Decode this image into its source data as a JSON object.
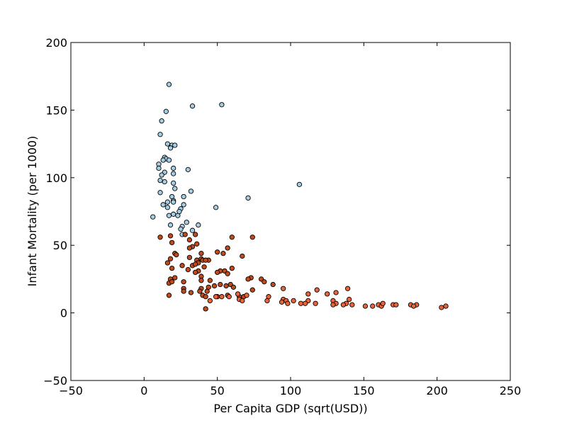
{
  "chart_data": {
    "type": "scatter",
    "title": "",
    "xlabel": "Per Capita GDP (sqrt(USD))",
    "ylabel": "Infant Mortality (per 1000)",
    "xlim": [
      -50,
      250
    ],
    "ylim": [
      -50,
      200
    ],
    "xticks": [
      -50,
      0,
      50,
      100,
      150,
      200,
      250
    ],
    "yticks": [
      -50,
      0,
      50,
      100,
      150,
      200
    ],
    "grid": false,
    "legend": "none",
    "colors": {
      "cluster_high": "#a6cde2",
      "cluster_mid": "#bf4a1b",
      "cluster_low": "#e7653a",
      "edge": "#000000"
    },
    "series": [
      {
        "color_key": "cluster_high",
        "points": [
          [
            17,
            169
          ],
          [
            53,
            154
          ],
          [
            33,
            153
          ],
          [
            15,
            149
          ],
          [
            12,
            142
          ],
          [
            11,
            132
          ],
          [
            16,
            125
          ],
          [
            19,
            124
          ],
          [
            21,
            124
          ],
          [
            18,
            122
          ],
          [
            14,
            115
          ],
          [
            15,
            114
          ],
          [
            13,
            113
          ],
          [
            17,
            113
          ],
          [
            10,
            110
          ],
          [
            10,
            107
          ],
          [
            20,
            107
          ],
          [
            30,
            106
          ],
          [
            14,
            104
          ],
          [
            12,
            102
          ],
          [
            20,
            103
          ],
          [
            11,
            98
          ],
          [
            14,
            97
          ],
          [
            20,
            96
          ],
          [
            106,
            95
          ],
          [
            21,
            92
          ],
          [
            32,
            90
          ],
          [
            11,
            89
          ],
          [
            19,
            86
          ],
          [
            27,
            86
          ],
          [
            71,
            85
          ],
          [
            20,
            83
          ],
          [
            13,
            80
          ],
          [
            20,
            82
          ],
          [
            16,
            82
          ],
          [
            27,
            80
          ],
          [
            16,
            78
          ],
          [
            49,
            78
          ],
          [
            25,
            77
          ],
          [
            20,
            73
          ],
          [
            17,
            72
          ],
          [
            23,
            72
          ],
          [
            24,
            75
          ],
          [
            6,
            71
          ],
          [
            29,
            67
          ],
          [
            18,
            65
          ],
          [
            37,
            65
          ],
          [
            26,
            64
          ],
          [
            25,
            62
          ],
          [
            33,
            61
          ],
          [
            26,
            58
          ]
        ]
      },
      {
        "color_key": "cluster_mid",
        "points": [
          [
            11,
            56
          ],
          [
            18,
            57
          ],
          [
            35,
            58
          ],
          [
            60,
            56
          ],
          [
            74,
            56
          ],
          [
            28,
            58
          ],
          [
            31,
            54
          ],
          [
            19,
            52
          ],
          [
            36,
            51
          ],
          [
            33,
            49
          ],
          [
            57,
            48
          ],
          [
            31,
            48
          ],
          [
            21,
            44
          ],
          [
            50,
            45
          ],
          [
            54,
            44
          ],
          [
            39,
            44
          ],
          [
            22,
            43
          ],
          [
            67,
            42
          ],
          [
            39,
            40
          ],
          [
            18,
            40
          ],
          [
            31,
            41
          ],
          [
            44,
            39
          ],
          [
            40,
            39
          ],
          [
            36,
            39
          ],
          [
            16,
            37
          ],
          [
            42,
            39
          ],
          [
            37,
            37
          ],
          [
            33,
            35
          ],
          [
            26,
            35
          ],
          [
            35,
            36
          ],
          [
            41,
            34
          ],
          [
            19,
            33
          ],
          [
            60,
            33
          ],
          [
            30,
            32
          ],
          [
            55,
            31
          ],
          [
            52,
            31
          ],
          [
            37,
            31
          ],
          [
            57,
            29
          ],
          [
            50,
            30
          ],
          [
            35,
            30
          ],
          [
            39,
            27
          ],
          [
            73,
            26
          ],
          [
            21,
            26
          ],
          [
            18,
            25
          ],
          [
            71,
            25
          ],
          [
            80,
            25
          ],
          [
            39,
            24
          ],
          [
            45,
            24
          ],
          [
            82,
            23
          ],
          [
            27,
            23
          ],
          [
            17,
            22
          ],
          [
            19,
            23
          ],
          [
            52,
            21
          ],
          [
            88,
            21
          ],
          [
            48,
            20
          ],
          [
            56,
            20
          ],
          [
            59,
            21
          ],
          [
            61,
            19
          ],
          [
            39,
            18
          ],
          [
            27,
            18
          ],
          [
            44,
            19
          ],
          [
            43,
            16
          ],
          [
            27,
            16
          ],
          [
            38,
            16
          ],
          [
            32,
            15
          ],
          [
            17,
            13
          ],
          [
            40,
            13
          ],
          [
            57,
            13
          ],
          [
            50,
            12
          ],
          [
            65,
            12
          ],
          [
            68,
            12
          ],
          [
            74,
            17
          ],
          [
            42,
            12
          ],
          [
            42,
            3
          ]
        ]
      },
      {
        "color_key": "cluster_low",
        "points": [
          [
            95,
            18
          ],
          [
            118,
            17
          ],
          [
            139,
            18
          ],
          [
            131,
            15
          ],
          [
            112,
            14
          ],
          [
            125,
            14
          ],
          [
            64,
            14
          ],
          [
            70,
            13
          ],
          [
            53,
            12
          ],
          [
            58,
            12
          ],
          [
            49,
            12
          ],
          [
            85,
            12
          ],
          [
            84,
            9
          ],
          [
            45,
            9
          ],
          [
            65,
            10
          ],
          [
            67,
            9
          ],
          [
            95,
            10
          ],
          [
            97,
            9
          ],
          [
            102,
            9
          ],
          [
            112,
            9
          ],
          [
            129,
            9
          ],
          [
            140,
            10
          ],
          [
            94,
            8
          ],
          [
            98,
            7
          ],
          [
            107,
            7
          ],
          [
            110,
            7
          ],
          [
            117,
            7
          ],
          [
            131,
            7
          ],
          [
            138,
            7
          ],
          [
            142,
            6
          ],
          [
            129,
            6
          ],
          [
            151,
            5
          ],
          [
            156,
            5
          ],
          [
            160,
            6
          ],
          [
            162,
            5
          ],
          [
            163,
            7
          ],
          [
            170,
            6
          ],
          [
            172,
            6
          ],
          [
            182,
            6
          ],
          [
            186,
            6
          ],
          [
            184,
            5
          ],
          [
            203,
            4
          ],
          [
            206,
            5
          ],
          [
            136,
            6
          ]
        ]
      }
    ]
  }
}
